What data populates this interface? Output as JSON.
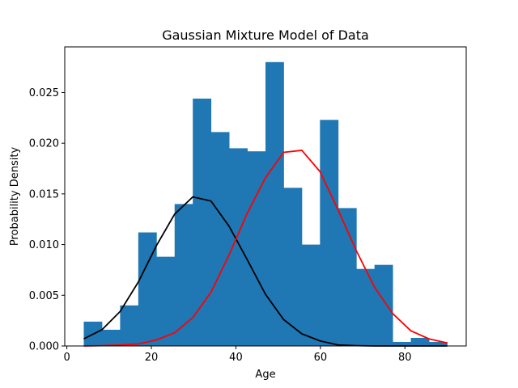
{
  "chart_data": {
    "type": "bar",
    "title": "Gaussian Mixture Model of Data",
    "xlabel": "Age",
    "ylabel": "Probability Density",
    "xlim": [
      -0.5,
      94.5
    ],
    "ylim": [
      0,
      0.0295
    ],
    "xticks": [
      0,
      20,
      40,
      60,
      80
    ],
    "yticks": [
      "0.000",
      "0.005",
      "0.010",
      "0.015",
      "0.020",
      "0.025"
    ],
    "yticks_values": [
      0,
      0.005,
      0.01,
      0.015,
      0.02,
      0.025
    ],
    "grid": false,
    "histogram": {
      "bin_edges": [
        4.0,
        8.3,
        12.6,
        16.9,
        21.2,
        25.5,
        29.8,
        34.1,
        38.4,
        42.7,
        47.0,
        51.3,
        55.6,
        59.9,
        64.2,
        68.5,
        72.8,
        77.1,
        81.4,
        85.7,
        90.0
      ],
      "values": [
        0.0024,
        0.0016,
        0.004,
        0.0112,
        0.0088,
        0.014,
        0.0244,
        0.0211,
        0.0195,
        0.0192,
        0.028,
        0.0156,
        0.01,
        0.0223,
        0.0136,
        0.0076,
        0.008,
        0.0004,
        0.0008,
        0.0004
      ],
      "color": "#1f77b4"
    },
    "series": [
      {
        "color": "#000000",
        "x": [
          4.0,
          8.3,
          12.6,
          16.9,
          21.2,
          25.5,
          29.8,
          34.1,
          38.4,
          42.7,
          47.0,
          51.3,
          55.6,
          59.9,
          64.2,
          68.5,
          72.8,
          77.1,
          81.4,
          85.7,
          90.0
        ],
        "values": [
          0.0007,
          0.0016,
          0.0034,
          0.0063,
          0.0099,
          0.013,
          0.0147,
          0.0143,
          0.0118,
          0.0085,
          0.0051,
          0.0026,
          0.0012,
          0.0005,
          0.0001,
          3e-05,
          0.0,
          0.0,
          0.0,
          0.0,
          0.0
        ]
      },
      {
        "color": "#ff0000",
        "x": [
          4.0,
          8.3,
          12.6,
          16.9,
          21.2,
          25.5,
          29.8,
          34.1,
          38.4,
          42.7,
          47.0,
          51.3,
          55.6,
          59.9,
          64.2,
          68.5,
          72.8,
          77.1,
          81.4,
          85.7,
          90.0
        ],
        "values": [
          0.0,
          3e-05,
          0.0001,
          0.0002,
          0.0006,
          0.0013,
          0.0028,
          0.0053,
          0.009,
          0.0131,
          0.0166,
          0.0191,
          0.0193,
          0.0172,
          0.0134,
          0.0094,
          0.0058,
          0.0032,
          0.0015,
          0.0007,
          0.0003
        ]
      }
    ]
  }
}
